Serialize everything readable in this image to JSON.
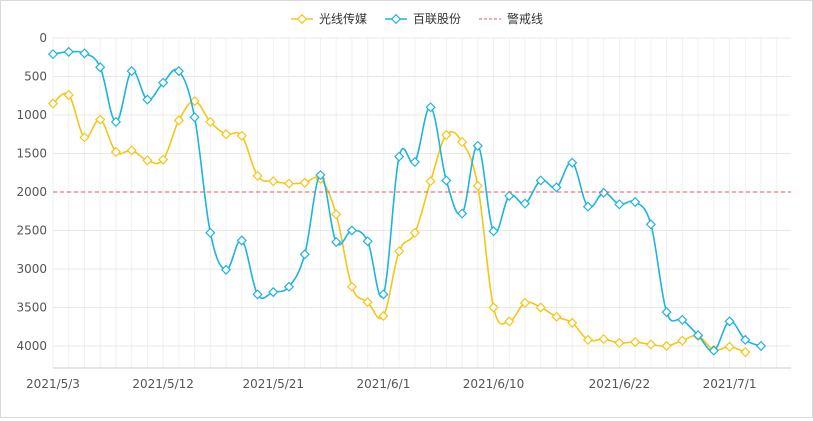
{
  "chart_data": {
    "type": "line",
    "title": "",
    "xlabel": "",
    "ylabel": "",
    "y_inverted": true,
    "ylim": [
      0,
      4000
    ],
    "yticks": [
      0,
      500,
      1000,
      1500,
      2000,
      2500,
      3000,
      3500,
      4000
    ],
    "grid": true,
    "legend_position": "top-center",
    "x_tick_labels": [
      "2021/5/3",
      "2021/5/12",
      "2021/5/21",
      "2021/6/1",
      "2021/6/10",
      "2021/6/22",
      "2021/7/1"
    ],
    "x_tick_index": [
      0,
      7,
      14,
      21,
      28,
      36,
      43
    ],
    "point_count": 46,
    "series": [
      {
        "name": "光线传媒",
        "color": "#f5c518",
        "values": [
          850,
          740,
          1290,
          1060,
          1480,
          1460,
          1590,
          1580,
          1070,
          820,
          1090,
          1250,
          1270,
          1790,
          1860,
          1890,
          1880,
          1830,
          2290,
          3230,
          3430,
          3610,
          2770,
          2530,
          1860,
          1260,
          1350,
          1920,
          3500,
          3680,
          3440,
          3500,
          3620,
          3700,
          3920,
          3910,
          3960,
          3950,
          3980,
          4000,
          3930,
          3870,
          4050,
          4010,
          4080,
          null
        ]
      },
      {
        "name": "百联股份",
        "color": "#1fb3e0",
        "values": [
          210,
          180,
          200,
          380,
          1090,
          430,
          800,
          580,
          430,
          1030,
          2530,
          3010,
          2630,
          3330,
          3300,
          3230,
          2810,
          1780,
          2650,
          2500,
          2640,
          3330,
          1540,
          1610,
          900,
          1850,
          2280,
          1400,
          2510,
          2050,
          2150,
          1850,
          1940,
          1620,
          2190,
          2010,
          2160,
          2130,
          2420,
          3560,
          3660,
          3860,
          4060,
          3680,
          3920,
          4000
        ]
      },
      {
        "name": "警戒线",
        "color": "#e05a5a",
        "dashed": true,
        "values": [
          2000
        ]
      }
    ]
  }
}
